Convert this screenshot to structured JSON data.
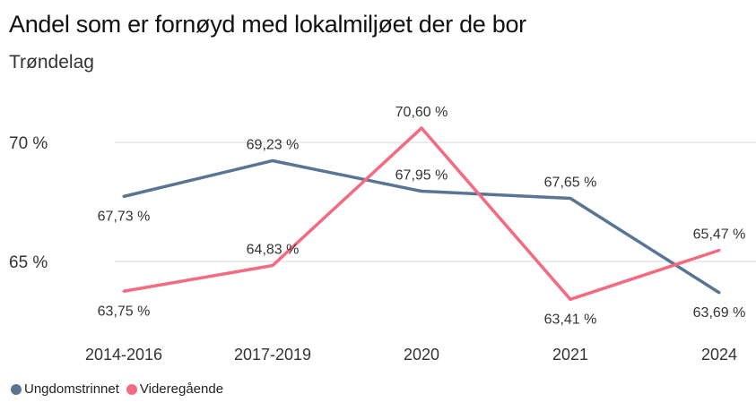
{
  "chart_data": {
    "type": "line",
    "title": "Andel som er fornøyd med lokalmiljøet der de bor",
    "subtitle": "Trøndelag",
    "categories": [
      "2014-2016",
      "2017-2019",
      "2020",
      "2021",
      "2024"
    ],
    "ylim": [
      60.9,
      72
    ],
    "yticks": [
      65,
      70
    ],
    "ytick_labels": [
      "65 %",
      "70 %"
    ],
    "grid": true,
    "legend_position": "bottom-left",
    "series": [
      {
        "name": "Ungdomstrinnet",
        "color": "#587593",
        "values": [
          67.73,
          69.23,
          67.95,
          67.65,
          63.69
        ],
        "labels": [
          "67,73 %",
          "69,23 %",
          "67,95 %",
          "67,65 %",
          "63,69 %"
        ],
        "label_side": [
          "below",
          "above",
          "above",
          "above",
          "below"
        ]
      },
      {
        "name": "Videregående",
        "color": "#f46a80",
        "values": [
          63.75,
          64.83,
          70.6,
          63.41,
          65.47
        ],
        "labels": [
          "63,75 %",
          "64,83 %",
          "70,60 %",
          "63,41 %",
          "65,47 %"
        ],
        "label_side": [
          "below",
          "above",
          "above",
          "below",
          "above"
        ]
      }
    ]
  }
}
